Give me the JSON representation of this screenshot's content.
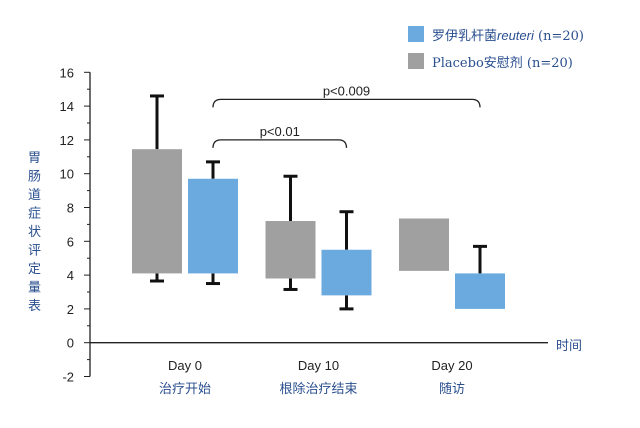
{
  "chart_data": {
    "type": "bar",
    "subtype": "floating-bar-with-error-bars",
    "categories": [
      "Day 0",
      "Day 10",
      "Day 20"
    ],
    "category_sublabels": [
      "治疗开始",
      "根除治疗结束",
      "随访"
    ],
    "ylabel": "胃肠道症状评定量表",
    "xlabel": "时间",
    "ylim": [
      -2,
      16
    ],
    "yticks": [
      -2,
      0,
      2,
      4,
      6,
      8,
      10,
      12,
      14,
      16
    ],
    "grid": false,
    "legend_position": "top-right",
    "series": [
      {
        "name": "罗伊乳杆菌",
        "name_italic": "reuteri",
        "name_suffix": " (n=20)",
        "color": "#6aaade",
        "low": [
          4.1,
          2.8,
          2.0
        ],
        "high": [
          9.7,
          5.5,
          4.1
        ],
        "whisker_low": [
          3.5,
          2.0,
          null
        ],
        "whisker_high": [
          10.7,
          7.75,
          5.7
        ]
      },
      {
        "name": "Placebo安慰剂",
        "name_italic": "",
        "name_suffix": " (n=20)",
        "color": "#a0a0a0",
        "low": [
          4.1,
          3.8,
          4.25
        ],
        "high": [
          11.45,
          7.2,
          7.35
        ],
        "whisker_low": [
          3.65,
          3.15,
          null
        ],
        "whisker_high": [
          14.6,
          9.85,
          null
        ]
      }
    ],
    "annotations": [
      {
        "text": "p<0.01",
        "from": "Day 0",
        "to": "Day 10",
        "series": "罗伊乳杆菌",
        "y": 12.0
      },
      {
        "text": "p<0.009",
        "from": "Day 0",
        "to": "Day 20",
        "series": "罗伊乳杆菌",
        "y": 14.4
      }
    ]
  }
}
